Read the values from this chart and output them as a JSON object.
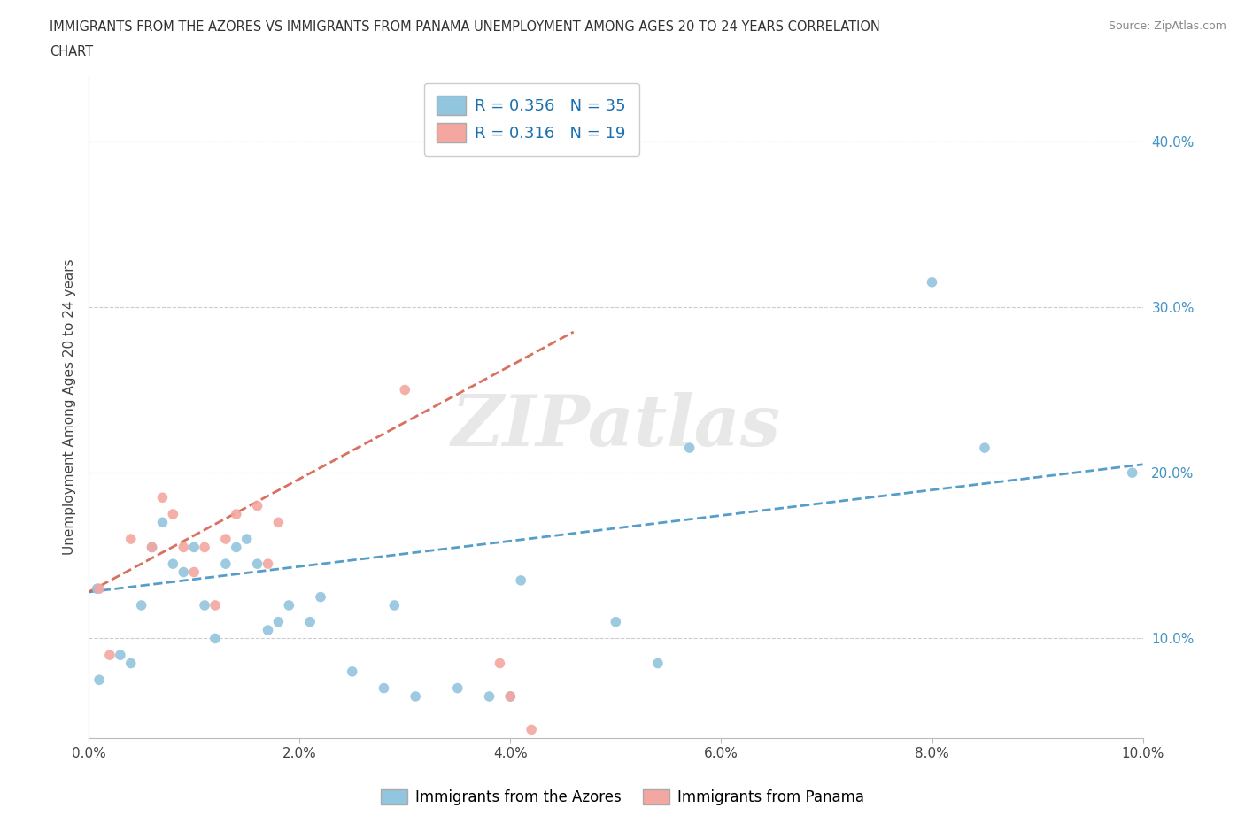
{
  "title_line1": "IMMIGRANTS FROM THE AZORES VS IMMIGRANTS FROM PANAMA UNEMPLOYMENT AMONG AGES 20 TO 24 YEARS CORRELATION",
  "title_line2": "CHART",
  "source": "Source: ZipAtlas.com",
  "ylabel": "Unemployment Among Ages 20 to 24 years",
  "xlim": [
    0.0,
    0.1
  ],
  "ylim": [
    0.04,
    0.44
  ],
  "xticks": [
    0.0,
    0.02,
    0.04,
    0.06,
    0.08,
    0.1
  ],
  "yticks": [
    0.1,
    0.2,
    0.3,
    0.4
  ],
  "xticklabels": [
    "0.0%",
    "2.0%",
    "4.0%",
    "6.0%",
    "8.0%",
    "10.0%"
  ],
  "yticklabels": [
    "10.0%",
    "20.0%",
    "30.0%",
    "40.0%"
  ],
  "azores_color": "#92c5de",
  "panama_color": "#f4a6a0",
  "azores_line_color": "#4393c3",
  "panama_line_color": "#d6604d",
  "R_azores": 0.356,
  "N_azores": 35,
  "R_panama": 0.316,
  "N_panama": 19,
  "legend_label_azores": "Immigrants from the Azores",
  "legend_label_panama": "Immigrants from Panama",
  "watermark": "ZIPatlas",
  "azores_x": [
    0.0008,
    0.001,
    0.003,
    0.004,
    0.005,
    0.006,
    0.007,
    0.008,
    0.009,
    0.01,
    0.011,
    0.012,
    0.013,
    0.014,
    0.015,
    0.016,
    0.017,
    0.018,
    0.019,
    0.021,
    0.022,
    0.025,
    0.028,
    0.029,
    0.031,
    0.035,
    0.038,
    0.04,
    0.041,
    0.05,
    0.054,
    0.057,
    0.08,
    0.085,
    0.099
  ],
  "azores_y": [
    0.13,
    0.075,
    0.09,
    0.085,
    0.12,
    0.155,
    0.17,
    0.145,
    0.14,
    0.155,
    0.12,
    0.1,
    0.145,
    0.155,
    0.16,
    0.145,
    0.105,
    0.11,
    0.12,
    0.11,
    0.125,
    0.08,
    0.07,
    0.12,
    0.065,
    0.07,
    0.065,
    0.065,
    0.135,
    0.11,
    0.085,
    0.215,
    0.315,
    0.215,
    0.2
  ],
  "panama_x": [
    0.001,
    0.002,
    0.004,
    0.006,
    0.007,
    0.008,
    0.009,
    0.01,
    0.011,
    0.012,
    0.013,
    0.014,
    0.016,
    0.017,
    0.018,
    0.03,
    0.039,
    0.04,
    0.042
  ],
  "panama_y": [
    0.13,
    0.09,
    0.16,
    0.155,
    0.185,
    0.175,
    0.155,
    0.14,
    0.155,
    0.12,
    0.16,
    0.175,
    0.18,
    0.145,
    0.17,
    0.25,
    0.085,
    0.065,
    0.045
  ],
  "azores_trend_x": [
    0.0,
    0.1
  ],
  "azores_trend_y": [
    0.128,
    0.205
  ],
  "panama_trend_x": [
    0.0,
    0.046
  ],
  "panama_trend_y": [
    0.128,
    0.285
  ]
}
